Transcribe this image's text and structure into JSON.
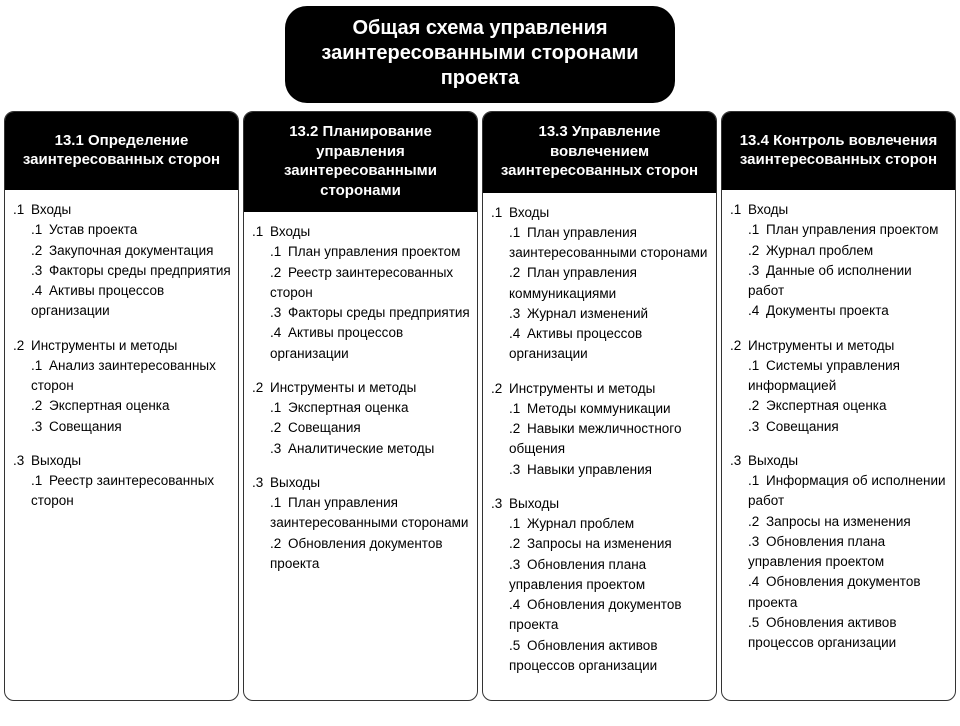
{
  "title": "Общая схема управления заинтересованными сторонами проекта",
  "styling": {
    "header_bg": "#000000",
    "header_fg": "#ffffff",
    "body_bg": "#ffffff",
    "body_fg": "#000000",
    "border_color": "#333333",
    "title_fontsize": 20,
    "col_header_fontsize": 15,
    "body_fontsize": 13.5,
    "border_radius": 10,
    "title_border_radius": 22
  },
  "columns": [
    {
      "header": "13.1 Определение заинтересованных сторон",
      "sections": [
        {
          "num": ".1",
          "title": "Входы",
          "items": [
            {
              "n": ".1",
              "t": "Устав проекта"
            },
            {
              "n": ".2",
              "t": "Закупочная документация"
            },
            {
              "n": ".3",
              "t": "Факторы среды предприятия"
            },
            {
              "n": ".4",
              "t": "Активы процессов организации"
            }
          ]
        },
        {
          "num": ".2",
          "title": "Инструменты и методы",
          "items": [
            {
              "n": ".1",
              "t": "Анализ заинтересованных сторон"
            },
            {
              "n": ".2",
              "t": "Экспертная оценка"
            },
            {
              "n": ".3",
              "t": "Совещания"
            }
          ]
        },
        {
          "num": ".3",
          "title": "Выходы",
          "items": [
            {
              "n": ".1",
              "t": "Реестр заинтересованных сторон"
            }
          ]
        }
      ]
    },
    {
      "header": "13.2 Планирование управления заинтересованными сторонами",
      "sections": [
        {
          "num": ".1",
          "title": "Входы",
          "items": [
            {
              "n": ".1",
              "t": "План управления проектом"
            },
            {
              "n": ".2",
              "t": "Реестр заинтересованных сторон"
            },
            {
              "n": ".3",
              "t": "Факторы среды предприятия"
            },
            {
              "n": ".4",
              "t": "Активы процессов организации"
            }
          ]
        },
        {
          "num": ".2",
          "title": "Инструменты и методы",
          "items": [
            {
              "n": ".1",
              "t": "Экспертная оценка"
            },
            {
              "n": ".2",
              "t": "Совещания"
            },
            {
              "n": ".3",
              "t": "Аналитические методы"
            }
          ]
        },
        {
          "num": ".3",
          "title": "Выходы",
          "items": [
            {
              "n": ".1",
              "t": "План управления заинтересованными сторонами"
            },
            {
              "n": ".2",
              "t": "Обновления документов проекта"
            }
          ]
        }
      ]
    },
    {
      "header": "13.3 Управление вовлечением заинтересованных сторон",
      "sections": [
        {
          "num": ".1",
          "title": "Входы",
          "items": [
            {
              "n": ".1",
              "t": "План управления заинтересованными сторонами"
            },
            {
              "n": ".2",
              "t": "План управления коммуникациями"
            },
            {
              "n": ".3",
              "t": "Журнал изменений"
            },
            {
              "n": ".4",
              "t": "Активы процессов организации"
            }
          ]
        },
        {
          "num": ".2",
          "title": "Инструменты и методы",
          "items": [
            {
              "n": ".1",
              "t": "Методы коммуникации"
            },
            {
              "n": ".2",
              "t": "Навыки межличностного общения"
            },
            {
              "n": ".3",
              "t": "Навыки управления"
            }
          ]
        },
        {
          "num": ".3",
          "title": "Выходы",
          "items": [
            {
              "n": ".1",
              "t": "Журнал проблем"
            },
            {
              "n": ".2",
              "t": "Запросы на изменения"
            },
            {
              "n": ".3",
              "t": "Обновления плана управления проектом"
            },
            {
              "n": ".4",
              "t": "Обновления документов проекта"
            },
            {
              "n": ".5",
              "t": "Обновления активов процессов организации"
            }
          ]
        }
      ]
    },
    {
      "header": "13.4 Контроль вовлечения заинтересованных сторон",
      "sections": [
        {
          "num": ".1",
          "title": "Входы",
          "items": [
            {
              "n": ".1",
              "t": "План управления проектом"
            },
            {
              "n": ".2",
              "t": "Журнал проблем"
            },
            {
              "n": ".3",
              "t": "Данные об исполнении работ"
            },
            {
              "n": ".4",
              "t": "Документы проекта"
            }
          ]
        },
        {
          "num": ".2",
          "title": "Инструменты и методы",
          "items": [
            {
              "n": ".1",
              "t": "Системы управления информацией"
            },
            {
              "n": ".2",
              "t": "Экспертная оценка"
            },
            {
              "n": ".3",
              "t": "Совещания"
            }
          ]
        },
        {
          "num": ".3",
          "title": "Выходы",
          "items": [
            {
              "n": ".1",
              "t": "Информация об исполнении работ"
            },
            {
              "n": ".2",
              "t": "Запросы на изменения"
            },
            {
              "n": ".3",
              "t": "Обновления плана управления проектом"
            },
            {
              "n": ".4",
              "t": "Обновления документов проекта"
            },
            {
              "n": ".5",
              "t": "Обновления активов процессов организации"
            }
          ]
        }
      ]
    }
  ]
}
